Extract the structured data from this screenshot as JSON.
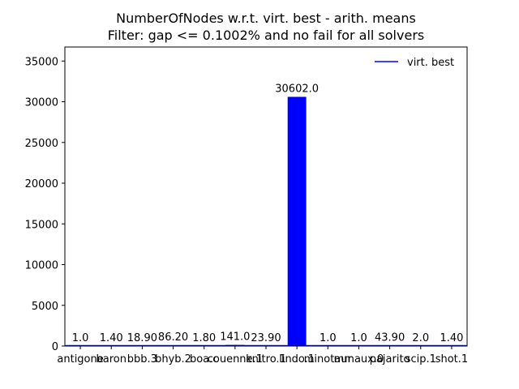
{
  "chart_data": {
    "type": "bar",
    "title": "NumberOfNodes w.r.t. virt. best - arith. means",
    "subtitle": "Filter: gap <= 0.1002% and no fail for all solvers",
    "xlabel": "",
    "ylabel": "",
    "categories": [
      "antigone",
      "baron",
      "bbb.3",
      "bhyb.2",
      "boa.c",
      "couenne.1",
      "knitro.1",
      "lindo.1",
      "minotaur",
      "mmaux.0",
      "pajarito",
      "scip.1",
      "shot.1"
    ],
    "category_labels": [
      "antigone",
      "baron",
      "bbb.3",
      "bhyb.2",
      "boa.c",
      "couenne.1",
      "knitro.1",
      "lindo.1",
      "minotaur",
      "mmaux.0",
      "pajarito",
      "scip.1",
      "shot.1"
    ],
    "values": [
      1.0,
      1.4,
      18.9,
      86.2,
      1.8,
      141.0,
      23.9,
      30602.0,
      1.0,
      1.0,
      43.9,
      2.0,
      1.4
    ],
    "value_labels": [
      "1.0",
      "1.40",
      "18.90",
      "86.20",
      "1.80",
      "141.0",
      "23.90",
      "30602.0",
      "1.0",
      "1.0",
      "43.90",
      "2.0",
      "1.40"
    ],
    "ylim": [
      0,
      36722.4
    ],
    "yticks": [
      0,
      5000,
      10000,
      15000,
      20000,
      25000,
      30000,
      35000
    ],
    "grid": false,
    "legend": {
      "position": "top-right",
      "entries": [
        "virt. best"
      ]
    },
    "bar_color": "#0000ff",
    "baseline_color": "#0000ff"
  }
}
